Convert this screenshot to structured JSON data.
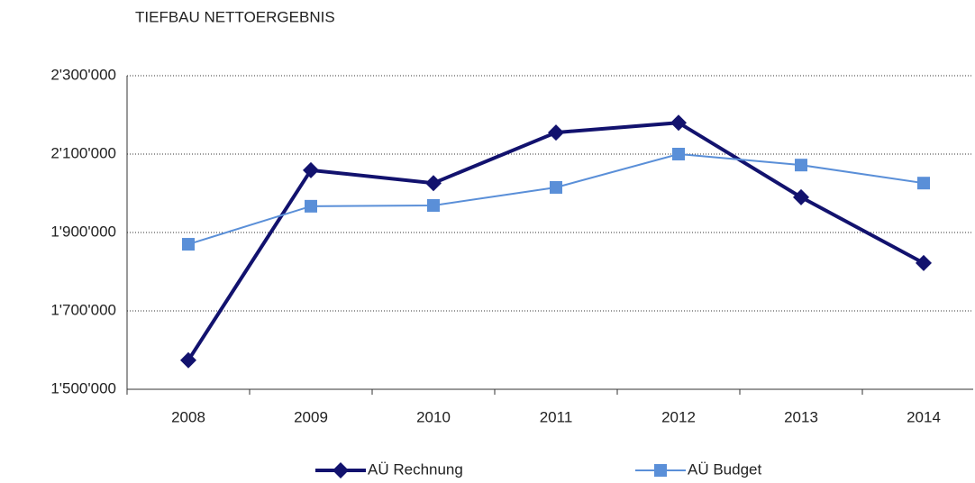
{
  "chart_data": {
    "type": "line",
    "title": "TIEFBAU NETTOERGEBNIS",
    "categories": [
      "2008",
      "2009",
      "2010",
      "2011",
      "2012",
      "2013",
      "2014"
    ],
    "series": [
      {
        "name": "AÜ Rechnung",
        "color": "#12126e",
        "marker": "diamond",
        "values": [
          1574000,
          2059000,
          2026000,
          2155000,
          2180000,
          1990000,
          1822000
        ]
      },
      {
        "name": "AÜ Budget",
        "color": "#5a8fd8",
        "marker": "square",
        "values": [
          1870000,
          1967000,
          1969000,
          2015000,
          2100000,
          2072000,
          2026000
        ]
      }
    ],
    "ylim": [
      1500000,
      2300000
    ],
    "yticks": [
      {
        "value": 1500000,
        "label": "1'500'000"
      },
      {
        "value": 1700000,
        "label": "1'700'000"
      },
      {
        "value": 1900000,
        "label": "1'900'000"
      },
      {
        "value": 2100000,
        "label": "2'100'000"
      },
      {
        "value": 2300000,
        "label": "2'300'000"
      }
    ],
    "grid": true,
    "legend": "bottom"
  }
}
